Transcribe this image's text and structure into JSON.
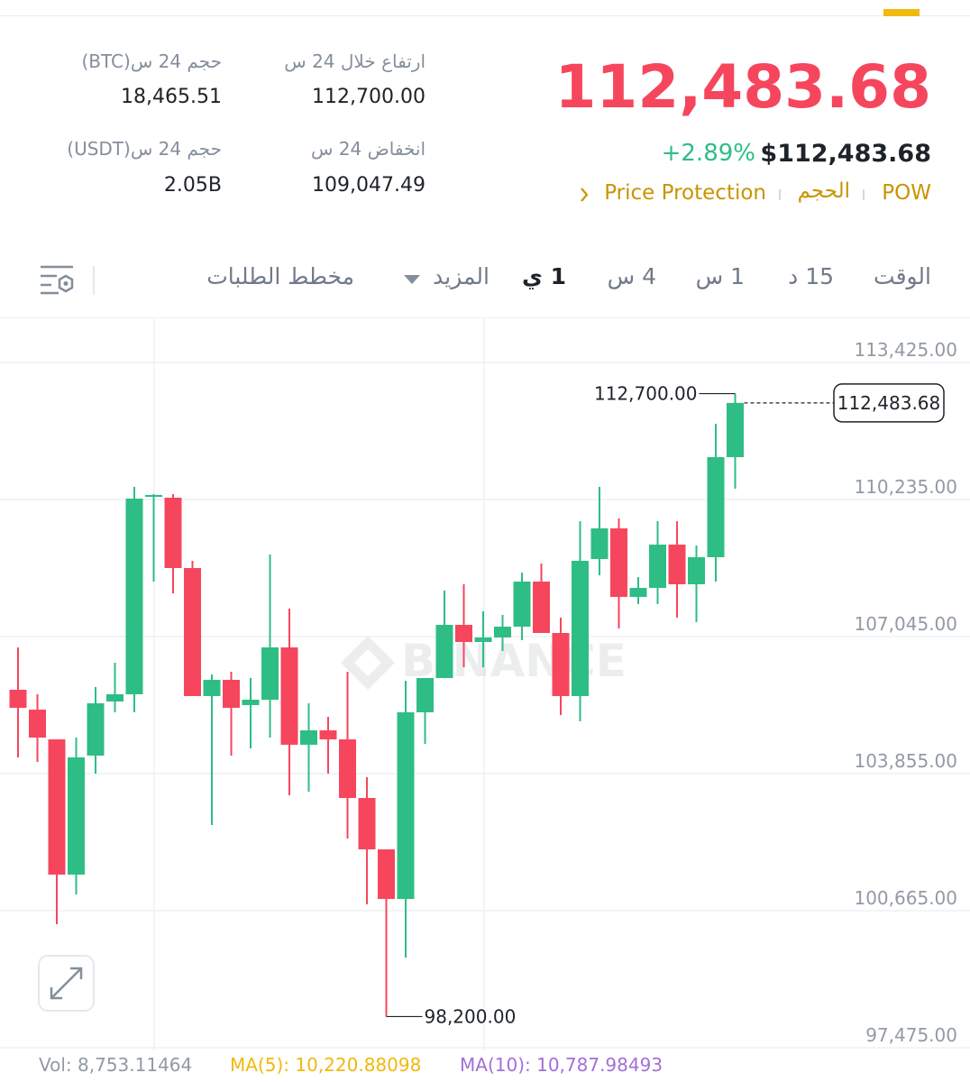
{
  "header": {
    "price": "112,483.68",
    "change": "+2.89%",
    "usd_price": "$112,483.68",
    "tags": [
      "POW",
      "الحجم",
      "Price Protection"
    ]
  },
  "stats": [
    {
      "label": "ارتفاع خلال 24 س",
      "value": "112,700.00"
    },
    {
      "label": "حجم 24 س(BTC)",
      "value": "18,465.51"
    },
    {
      "label": "انخفاض 24 س",
      "value": "109,047.49"
    },
    {
      "label": "حجم 24 س(USDT)",
      "value": "2.05B"
    }
  ],
  "tabs": [
    "الوقت",
    "15 د",
    "1 س",
    "4 س",
    "1 ي",
    "المزيد",
    "مخطط الطلبات"
  ],
  "footer": {
    "vol": "Vol: 8,753.11464",
    "ma5": "MA(5): 10,220.88098",
    "ma10": "MA(10): 10,787.98493"
  },
  "chart_data": {
    "type": "candlestick",
    "watermark": "BINANCE",
    "up_color": "#2ebd85",
    "down_color": "#f6465d",
    "grid": true,
    "ylim": [
      97475,
      113425
    ],
    "yticks": [
      {
        "value": 97475,
        "label": "97,475.00"
      },
      {
        "value": 100665,
        "label": "100,665.00"
      },
      {
        "value": 103855,
        "label": "103,855.00"
      },
      {
        "value": 107045,
        "label": "107,045.00"
      },
      {
        "value": 110235,
        "label": "110,235.00"
      },
      {
        "value": 113425,
        "label": "113,425.00"
      }
    ],
    "open": [
      105807,
      105345,
      104652,
      101505,
      104275,
      105534,
      105702,
      110298,
      110277,
      108640,
      105660,
      106038,
      105450,
      105576,
      106793,
      104527,
      104862,
      104652,
      103288,
      102092,
      100938,
      105282,
      106080,
      107318,
      106919,
      107024,
      107276,
      108325,
      107129,
      105660,
      108850,
      109563,
      107968,
      108178,
      109186,
      108262,
      108892,
      111221
    ],
    "high": [
      106793,
      105702,
      104652,
      104694,
      105870,
      106436,
      110529,
      110361,
      110361,
      108808,
      106164,
      106227,
      106080,
      108955,
      107696,
      105492,
      105177,
      106227,
      103771,
      102092,
      106017,
      106080,
      108115,
      108262,
      107633,
      107549,
      108535,
      108745,
      107486,
      109731,
      110529,
      109794,
      108430,
      109731,
      109731,
      109165,
      111998,
      112700
    ],
    "low": [
      104233,
      104128,
      100350,
      101043,
      103855,
      105282,
      105282,
      108325,
      108052,
      105660,
      102659,
      104275,
      104443,
      104694,
      103351,
      103435,
      103855,
      102344,
      100812,
      98200,
      99574,
      104548,
      106080,
      106331,
      106331,
      106709,
      106961,
      107129,
      105219,
      105072,
      108472,
      107234,
      107801,
      107801,
      107486,
      107381,
      108325,
      110487
    ],
    "close": [
      105387,
      104694,
      101505,
      104233,
      105492,
      105702,
      110256,
      110340,
      108640,
      105660,
      106038,
      105387,
      105576,
      106793,
      104527,
      104862,
      104652,
      103288,
      102092,
      100938,
      105282,
      106080,
      107318,
      106919,
      107024,
      107276,
      108325,
      107129,
      105660,
      108808,
      109563,
      107968,
      108178,
      109186,
      108262,
      108892,
      111221,
      112483.68
    ],
    "annotations": {
      "high": {
        "value": 112700,
        "label": "112,700.00"
      },
      "low": {
        "value": 98200,
        "label": "98,200.00"
      },
      "last": {
        "value": 112483.68,
        "label": "112,483.68"
      }
    }
  }
}
